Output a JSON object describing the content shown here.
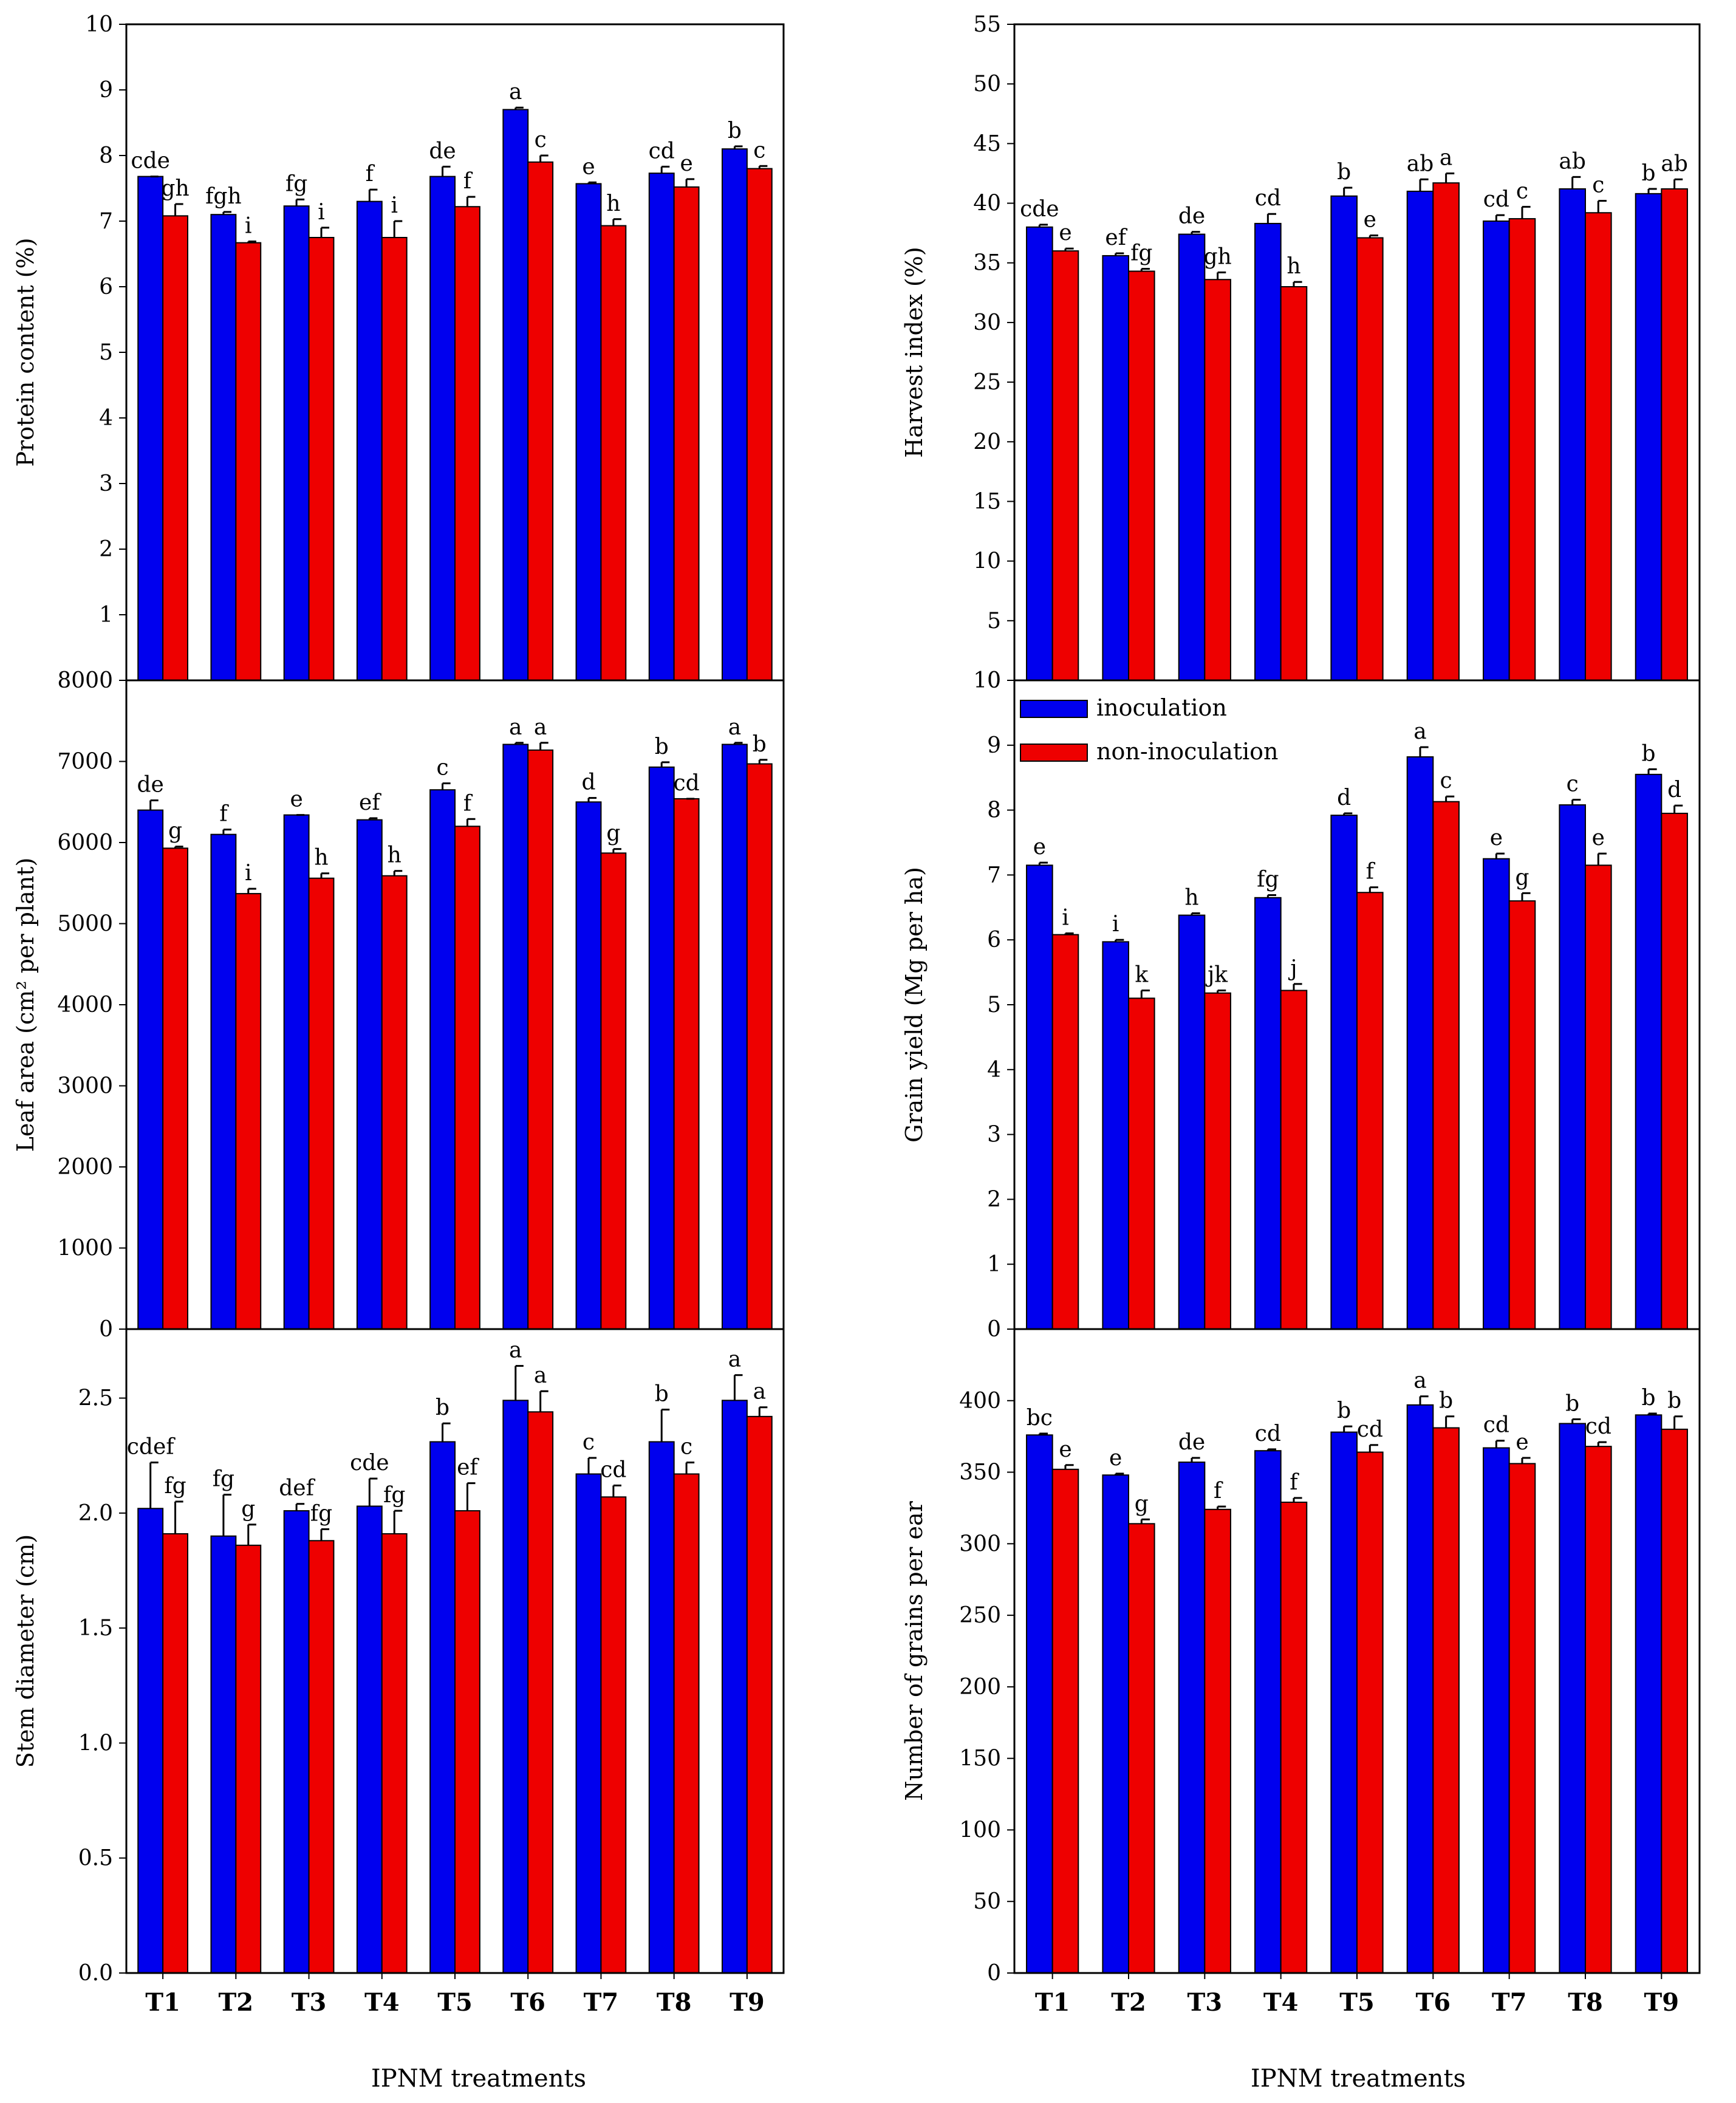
{
  "colors": {
    "inoculation": "#0000ee",
    "non_inoculation": "#ee0000"
  },
  "legend": {
    "inoculation": "inoculation",
    "non_inoculation": "non-inoculation"
  },
  "xlabel_left": "IPNM treatments",
  "xlabel_right": "IPNM treatments",
  "chart_data": [
    {
      "type": "bar",
      "title": "",
      "ylabel": "Protein content (%)",
      "xlabel": "",
      "ylim": [
        0,
        10
      ],
      "yticks": [
        1,
        2,
        3,
        4,
        5,
        6,
        7,
        8,
        9,
        10
      ],
      "categories": [
        "T1",
        "T2",
        "T3",
        "T4",
        "T5",
        "T6",
        "T7",
        "T8",
        "T9"
      ],
      "series": [
        {
          "name": "inoculation",
          "values": [
            7.68,
            7.1,
            7.23,
            7.3,
            7.68,
            8.7,
            7.57,
            7.73,
            8.1
          ],
          "errors": [
            0,
            0.04,
            0.1,
            0.18,
            0.15,
            0.03,
            0.02,
            0.1,
            0.04
          ],
          "letters": [
            "cde",
            "fgh",
            "fg",
            "f",
            "de",
            "a",
            "e",
            "cd",
            "b"
          ]
        },
        {
          "name": "non-inoculation",
          "values": [
            7.08,
            6.67,
            6.75,
            6.75,
            7.22,
            7.9,
            6.93,
            7.52,
            7.8
          ],
          "errors": [
            0.18,
            0.02,
            0.15,
            0.25,
            0.15,
            0.1,
            0.1,
            0.12,
            0.04
          ],
          "letters": [
            "gh",
            "i",
            "i",
            "i",
            "f",
            "c",
            "h",
            "e",
            "c"
          ]
        }
      ]
    },
    {
      "type": "bar",
      "title": "",
      "ylabel": "Harvest index (%)",
      "xlabel": "",
      "ylim": [
        0,
        55
      ],
      "yticks": [
        0,
        5,
        10,
        15,
        20,
        25,
        30,
        35,
        40,
        45,
        50,
        55
      ],
      "categories": [
        "T1",
        "T2",
        "T3",
        "T4",
        "T5",
        "T6",
        "T7",
        "T8",
        "T9"
      ],
      "series": [
        {
          "name": "inoculation",
          "values": [
            38.0,
            35.6,
            37.4,
            38.3,
            40.6,
            41.0,
            38.5,
            41.2,
            40.8
          ],
          "errors": [
            0.2,
            0.2,
            0.2,
            0.8,
            0.7,
            1.0,
            0.5,
            1.0,
            0.4
          ],
          "letters": [
            "cde",
            "ef",
            "de",
            "cd",
            "b",
            "ab",
            "cd",
            "ab",
            "b"
          ]
        },
        {
          "name": "non-inoculation",
          "values": [
            36.0,
            34.3,
            33.6,
            33.0,
            37.1,
            41.7,
            38.7,
            39.2,
            41.2
          ],
          "errors": [
            0.2,
            0.2,
            0.6,
            0.4,
            0.2,
            0.8,
            1.0,
            1.0,
            0.8
          ],
          "letters": [
            "e",
            "fg",
            "gh",
            "h",
            "e",
            "a",
            "c",
            "c",
            "ab"
          ]
        }
      ]
    },
    {
      "type": "bar",
      "title": "",
      "ylabel": "Leaf area (cm² per plant)",
      "xlabel": "",
      "ylim": [
        0,
        8000
      ],
      "yticks": [
        0,
        1000,
        2000,
        3000,
        4000,
        5000,
        6000,
        7000,
        8000
      ],
      "categories": [
        "T1",
        "T2",
        "T3",
        "T4",
        "T5",
        "T6",
        "T7",
        "T8",
        "T9"
      ],
      "series": [
        {
          "name": "inoculation",
          "values": [
            6400,
            6100,
            6340,
            6280,
            6650,
            7210,
            6500,
            6930,
            7210
          ],
          "errors": [
            120,
            60,
            0,
            20,
            80,
            20,
            50,
            60,
            20
          ],
          "letters": [
            "de",
            "f",
            "e",
            "ef",
            "c",
            "a",
            "d",
            "b",
            "a"
          ]
        },
        {
          "name": "non-inoculation",
          "values": [
            5930,
            5370,
            5560,
            5590,
            6200,
            7140,
            5870,
            6540,
            6970
          ],
          "errors": [
            20,
            60,
            60,
            60,
            90,
            90,
            50,
            0,
            50
          ],
          "letters": [
            "g",
            "i",
            "h",
            "h",
            "f",
            "a",
            "g",
            "cd",
            "b"
          ]
        }
      ]
    },
    {
      "type": "bar",
      "title": "",
      "ylabel": "Grain yield (Mg per ha)",
      "xlabel": "",
      "ylim": [
        0,
        10
      ],
      "yticks": [
        0,
        1,
        2,
        3,
        4,
        5,
        6,
        7,
        8,
        9,
        10
      ],
      "categories": [
        "T1",
        "T2",
        "T3",
        "T4",
        "T5",
        "T6",
        "T7",
        "T8",
        "T9"
      ],
      "series": [
        {
          "name": "inoculation",
          "values": [
            7.15,
            5.97,
            6.38,
            6.65,
            7.92,
            8.82,
            7.25,
            8.08,
            8.55
          ],
          "errors": [
            0.04,
            0.03,
            0.03,
            0.04,
            0.03,
            0.15,
            0.08,
            0.08,
            0.08
          ],
          "letters": [
            "e",
            "i",
            "h",
            "fg",
            "d",
            "a",
            "e",
            "c",
            "b"
          ]
        },
        {
          "name": "non-inoculation",
          "values": [
            6.08,
            5.1,
            5.18,
            5.22,
            6.73,
            8.13,
            6.6,
            7.15,
            7.95
          ],
          "errors": [
            0.02,
            0.12,
            0.04,
            0.1,
            0.08,
            0.08,
            0.12,
            0.18,
            0.12
          ],
          "letters": [
            "i",
            "k",
            "jk",
            "j",
            "f",
            "c",
            "g",
            "e",
            "d"
          ]
        }
      ]
    },
    {
      "type": "bar",
      "title": "",
      "ylabel": "Stem diameter (cm)",
      "xlabel": "IPNM treatments",
      "ylim": [
        0,
        2.8
      ],
      "yticks": [
        0.0,
        0.5,
        1.0,
        1.5,
        2.0,
        2.5
      ],
      "categories": [
        "T1",
        "T2",
        "T3",
        "T4",
        "T5",
        "T6",
        "T7",
        "T8",
        "T9"
      ],
      "series": [
        {
          "name": "inoculation",
          "values": [
            2.02,
            1.9,
            2.01,
            2.03,
            2.31,
            2.49,
            2.17,
            2.31,
            2.49
          ],
          "errors": [
            0.2,
            0.18,
            0.03,
            0.12,
            0.08,
            0.15,
            0.07,
            0.14,
            0.11
          ],
          "letters": [
            "cdef",
            "fg",
            "def",
            "cde",
            "b",
            "a",
            "c",
            "b",
            "a"
          ]
        },
        {
          "name": "non-inoculation",
          "values": [
            1.91,
            1.86,
            1.88,
            1.91,
            2.01,
            2.44,
            2.07,
            2.17,
            2.42
          ],
          "errors": [
            0.14,
            0.09,
            0.05,
            0.1,
            0.12,
            0.09,
            0.05,
            0.05,
            0.04
          ],
          "letters": [
            "fg",
            "g",
            "fg",
            "fg",
            "ef",
            "a",
            "cd",
            "c",
            "a"
          ]
        }
      ]
    },
    {
      "type": "bar",
      "title": "",
      "ylabel": "Number of grains per ear",
      "xlabel": "IPNM treatments",
      "ylim": [
        0,
        450
      ],
      "yticks": [
        0,
        50,
        100,
        150,
        200,
        250,
        300,
        350,
        400
      ],
      "categories": [
        "T1",
        "T2",
        "T3",
        "T4",
        "T5",
        "T6",
        "T7",
        "T8",
        "T9"
      ],
      "series": [
        {
          "name": "inoculation",
          "values": [
            376,
            348,
            357,
            365,
            378,
            397,
            367,
            384,
            390
          ],
          "errors": [
            1,
            1,
            3,
            1,
            4,
            6,
            5,
            3,
            1
          ],
          "letters": [
            "bc",
            "e",
            "de",
            "cd",
            "b",
            "a",
            "cd",
            "b",
            "b"
          ]
        },
        {
          "name": "non-inoculation",
          "values": [
            352,
            314,
            324,
            329,
            364,
            381,
            356,
            368,
            380
          ],
          "errors": [
            3,
            3,
            2,
            3,
            5,
            8,
            4,
            3,
            9
          ],
          "letters": [
            "e",
            "g",
            "f",
            "f",
            "cd",
            "b",
            "e",
            "cd",
            "b"
          ]
        }
      ]
    }
  ]
}
